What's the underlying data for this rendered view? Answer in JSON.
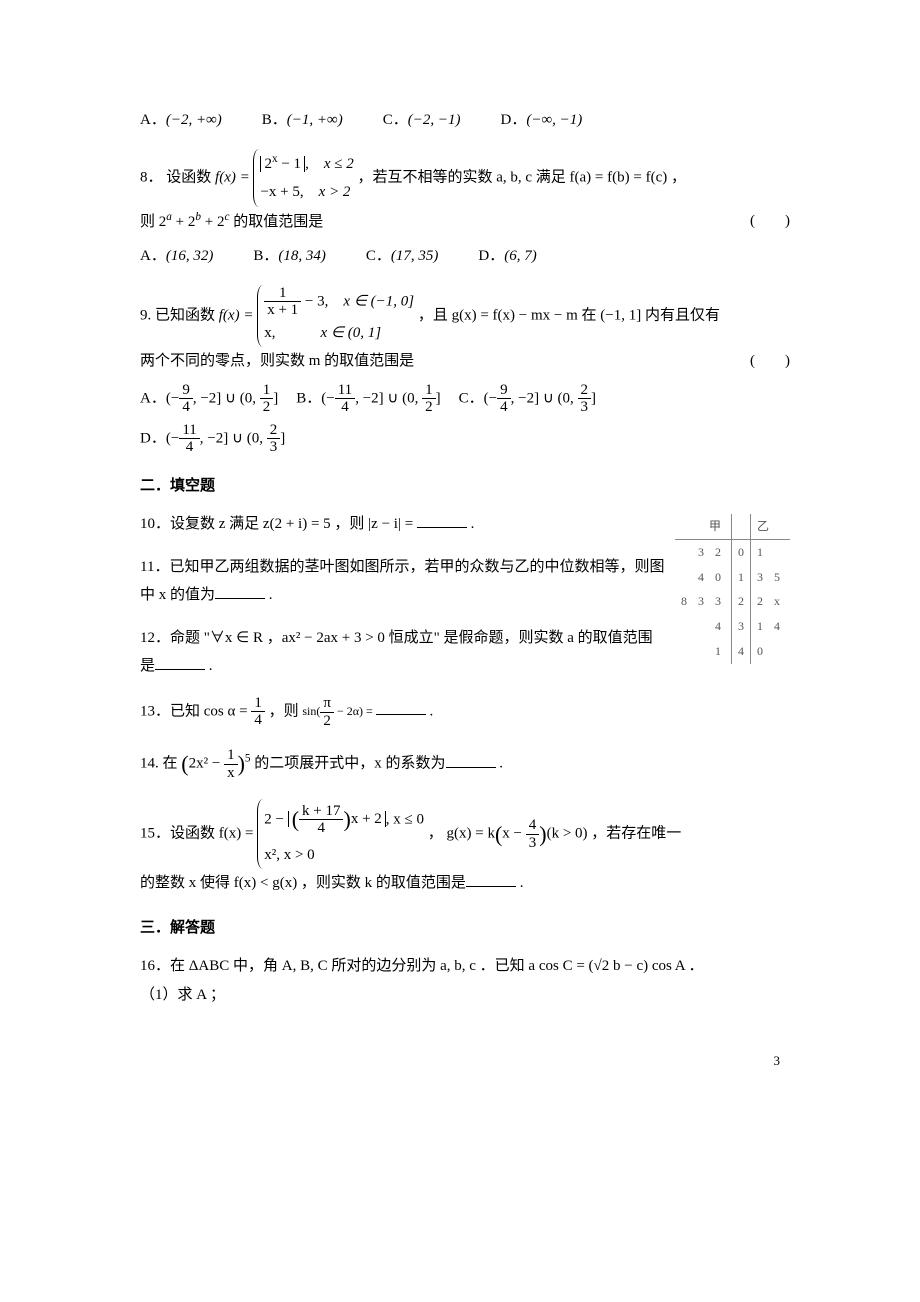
{
  "q7": {
    "opts": {
      "A": "(−2, +∞)",
      "B": "(−1, +∞)",
      "C": "(−2, −1)",
      "D": "(−∞, −1)"
    }
  },
  "q8": {
    "label": "8．",
    "intro": "设函数",
    "fx": "f(x) =",
    "case1a": "|2^x − 1|,",
    "case1b": "x ≤ 2",
    "case2a": "−x + 5,",
    "case2b": "x > 2",
    "mid": "，若互不相等的实数 a, b, c 满足 f(a) = f(b) = f(c) ，",
    "tail": "则 2^a + 2^b + 2^c 的取值范围是",
    "paren": "(　　)",
    "opts": {
      "A": "(16, 32)",
      "B": "(18, 34)",
      "C": "(17, 35)",
      "D": "(6, 7)"
    }
  },
  "q9": {
    "label": "9. ",
    "intro": "已知函数",
    "fx": "f(x) =",
    "case1a_num": "1",
    "case1a_den": "x + 1",
    "case1a_tail": " − 3,",
    "case1b": "x ∈ (−1, 0]",
    "case2a": "x,",
    "case2b": "x ∈ (0, 1]",
    "mid": "，且 g(x) = f(x) − mx − m 在 (−1, 1] 内有且仅有",
    "tail": "两个不同的零点，则实数 m 的取值范围是",
    "paren": "(　　)",
    "optA_a": "(−",
    "optA_b": ", −2] ∪ (0, ",
    "optA_c": "]",
    "optB_a": "(−",
    "optB_b": ", −2] ∪ (0, ",
    "optB_c": "]",
    "optC_a": "(−",
    "optC_b": ", −2] ∪ (0, ",
    "optC_c": "]",
    "optD_a": "(−",
    "optD_b": ", −2] ∪ (0, ",
    "optD_c": "]",
    "f94n": "9",
    "f94d": "4",
    "f114n": "11",
    "f114d": "4",
    "f12n": "1",
    "f12d": "2",
    "f23n": "2",
    "f23d": "3"
  },
  "sec2": "二．填空题",
  "q10": {
    "label": "10．",
    "a": "设复数 z 满足 z(2 + i) = 5 ，则 |z − i| = ",
    "b": " ."
  },
  "q11": {
    "label": "11．",
    "a": "已知甲乙两组数据的茎叶图如图所示，若甲的众数与乙的中位数相等，则图中 x 的值为",
    "b": " ."
  },
  "stemleaf": {
    "head_left": "甲",
    "head_right": "乙",
    "rows": [
      {
        "l": "3 2",
        "s": "0",
        "r": "1"
      },
      {
        "l": "4 0",
        "s": "1",
        "r": "3 5"
      },
      {
        "l": "8 3 3",
        "s": "2",
        "r": "2 x"
      },
      {
        "l": "4",
        "s": "3",
        "r": "1 4"
      },
      {
        "l": "1",
        "s": "4",
        "r": "0"
      }
    ]
  },
  "q12": {
    "label": "12．",
    "a": "命题 \"∀x ∈ R ，ax² − 2ax + 3 > 0 恒成立\" 是假命题，则实数 a 的取值范围是",
    "b": " ."
  },
  "q13": {
    "label": "13．",
    "a": "已知 cos α = ",
    "fn": "1",
    "fd": "4",
    "b": " ，则 ",
    "sin": "sin(",
    "pn": "π",
    "pd": "2",
    "c": " − 2α) = ",
    "d": " ."
  },
  "q14": {
    "label": "14. ",
    "a": "在 ",
    "inner1": "2x² − ",
    "fn": "1",
    "fd": "x",
    "exp": "5",
    "b": " 的二项展开式中，x 的系数为",
    "c": " ."
  },
  "q15": {
    "label": "15．",
    "a": "设函数 f(x) = ",
    "c1a": "2 − ",
    "c1_fn": "k + 17",
    "c1_fd": "4",
    "c1b": "x + 2",
    "c1c": ", x ≤ 0",
    "c2": "x², x > 0",
    "mid": " ， g(x) = k",
    "gx_a": "x − ",
    "gx_fn": "4",
    "gx_fd": "3",
    "gx_b": "(k > 0)",
    "tail": " ，若存在唯一",
    "line2a": "的整数 x 使得 f(x) < g(x) ，则实数 k 的取值范围是",
    "line2b": " ."
  },
  "sec3": "三．解答题",
  "q16": {
    "label": "16．",
    "a": "在 ΔABC 中，角 A, B, C 所对的边分别为 a, b, c ．已知 a cos C = (√2 b − c) cos A ．",
    "sub1": "（1）求 A ；"
  },
  "pageno": "3"
}
